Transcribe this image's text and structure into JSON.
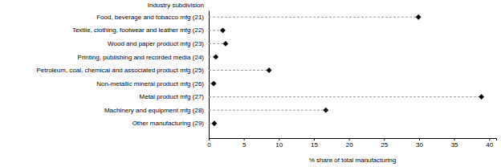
{
  "chart_data": {
    "type": "dot",
    "orientation": "horizontal",
    "y_label": "Industry subdivision",
    "x_label": "% share of total manufacturing",
    "categories": [
      "Food, beverage and tobacco mfg (21)",
      "Textile, clothing, footwear and leather mfg (22)",
      "Wood and paper product mfg (23)",
      "Printing, publishing and recorded media (24)",
      "Petroleum, coal, chemical and associated product mfg (25)",
      "Non-metallic mineral product mfg (26)",
      "Metal product mfg (27)",
      "Machinery and equipment mfg (28)",
      "Other manufacturing (29)"
    ],
    "values": [
      29.9,
      2.0,
      2.4,
      1.0,
      8.6,
      0.7,
      38.9,
      16.7,
      0.8
    ],
    "color": "#000000",
    "marker": "diamond",
    "line_style": "dashed",
    "xlim": [
      0,
      41
    ],
    "xticks": [
      0,
      5,
      10,
      15,
      20,
      25,
      30,
      35,
      40
    ],
    "grid": false
  }
}
